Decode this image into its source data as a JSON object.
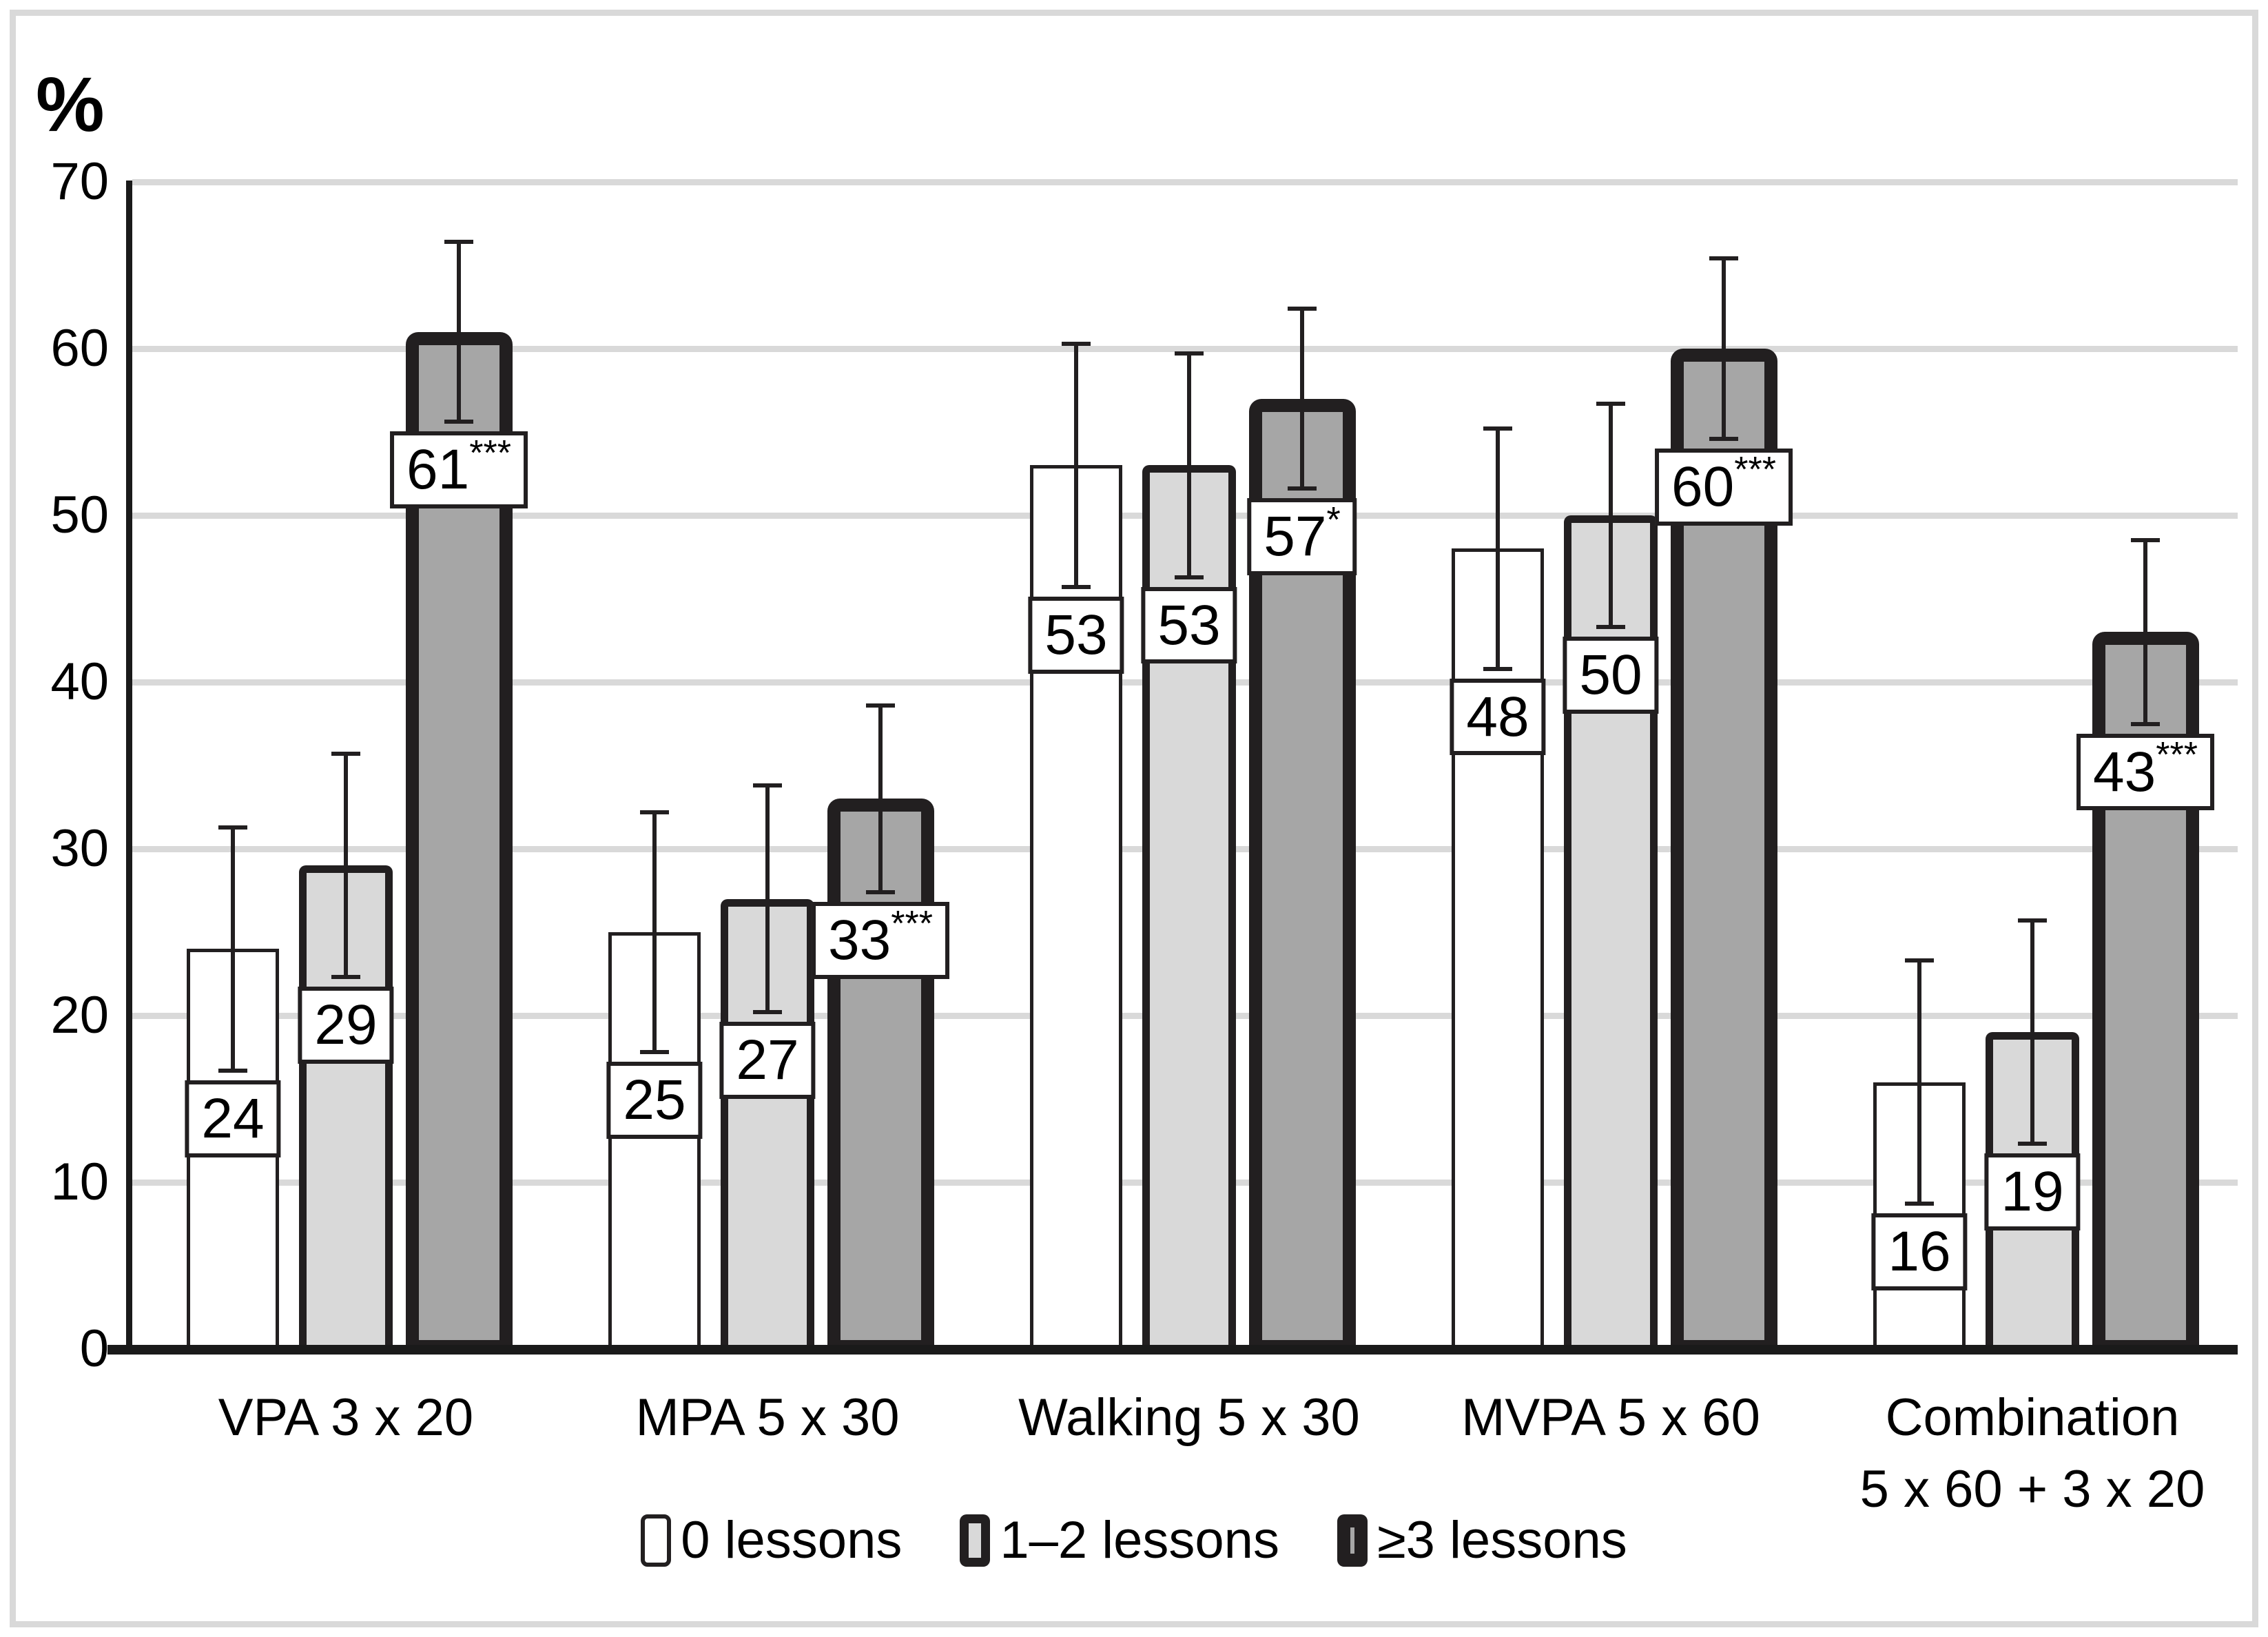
{
  "y_axis_title": "%",
  "chart_data": {
    "type": "bar",
    "title": "",
    "ylabel": "%",
    "xlabel": "",
    "ylim": [
      0,
      70
    ],
    "yticks": [
      0,
      10,
      20,
      30,
      40,
      50,
      60,
      70
    ],
    "grid": "horizontal",
    "legend_position": "bottom",
    "categories": [
      "VPA 3 x 20",
      "MPA 5 x 30",
      "Walking 5 x 30",
      "MVPA 5 x 60",
      "Combination\n5 x 60 + 3 x 20"
    ],
    "series": [
      {
        "name": "0 lessons",
        "fill": "#ffffff",
        "outline_weight": "thin",
        "values": [
          24,
          25,
          53,
          48,
          16
        ],
        "error_upper": [
          31.3,
          32.2,
          60.3,
          55.2,
          23.3
        ],
        "error_lower": [
          16.7,
          17.8,
          45.7,
          40.8,
          8.7
        ],
        "sig": [
          "",
          "",
          "",
          "",
          ""
        ]
      },
      {
        "name": "1–2 lessons",
        "fill": "#d9d9d9",
        "outline_weight": "medium",
        "values": [
          29,
          27,
          53,
          50,
          19
        ],
        "error_upper": [
          35.7,
          33.8,
          59.7,
          56.7,
          25.7
        ],
        "error_lower": [
          22.3,
          20.2,
          46.3,
          43.3,
          12.3
        ],
        "sig": [
          "",
          "",
          "",
          "",
          ""
        ]
      },
      {
        "name": "≥3 lessons",
        "fill": "#a6a6a6",
        "outline_weight": "thick",
        "values": [
          61,
          33,
          57,
          60,
          43
        ],
        "error_upper": [
          66.4,
          38.6,
          62.4,
          65.4,
          48.5
        ],
        "error_lower": [
          55.6,
          27.4,
          51.6,
          54.6,
          37.5
        ],
        "sig": [
          "***",
          "***",
          "*",
          "***",
          "***"
        ]
      }
    ]
  },
  "colors": {
    "background": "#ffffff",
    "frame": "#d9d9d9",
    "gridline": "#d9d9d9",
    "axis": "#1a1a1a",
    "bar_outline": "#221f20",
    "text": "#000000",
    "series_fills": [
      "#ffffff",
      "#d9d9d9",
      "#a6a6a6"
    ]
  }
}
